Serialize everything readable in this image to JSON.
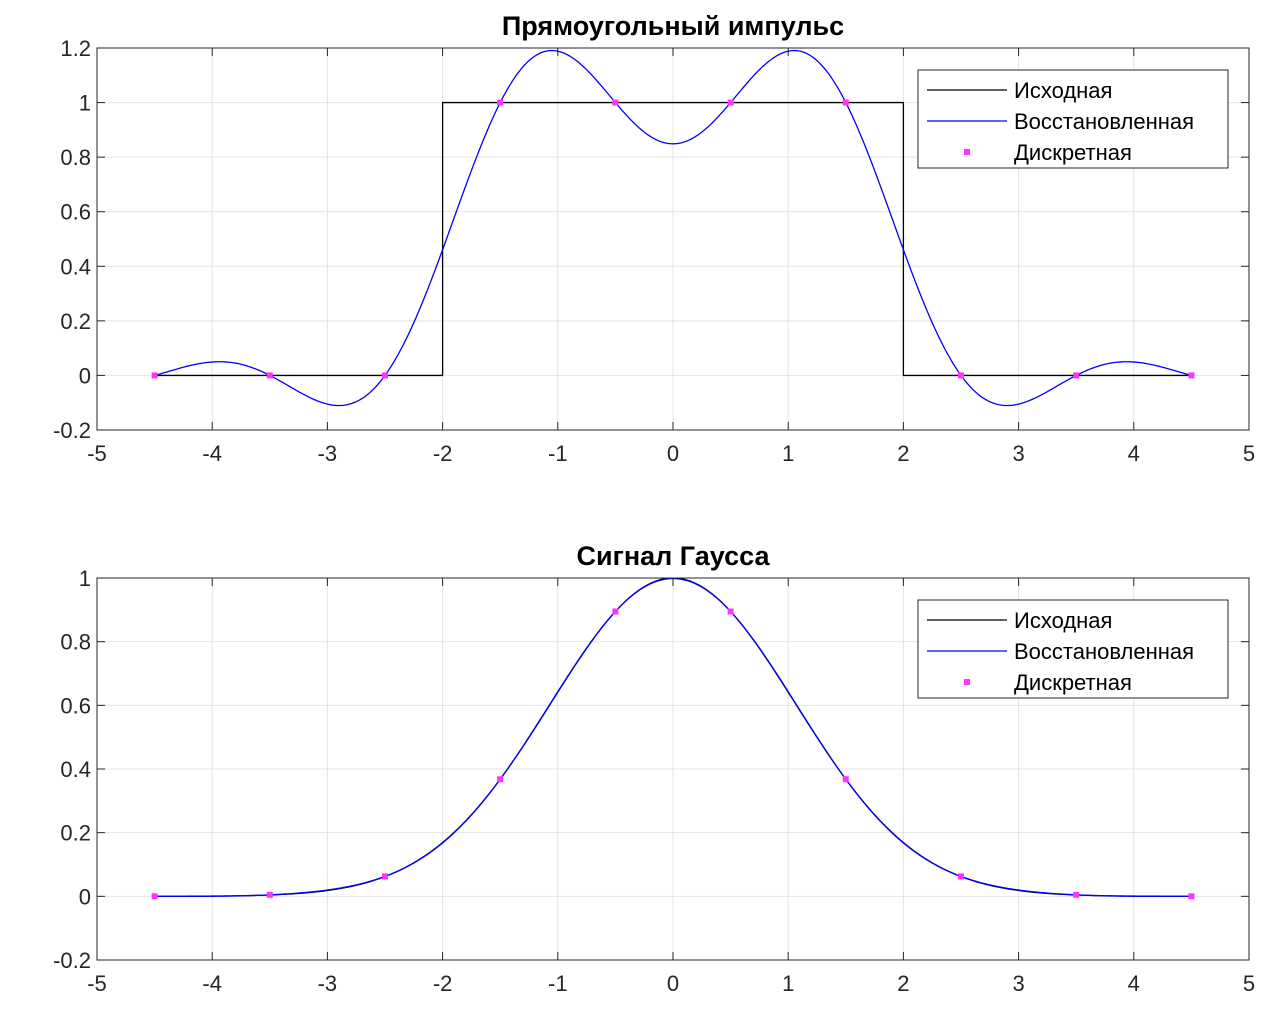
{
  "chart_data": [
    {
      "type": "line",
      "title": "Прямоугольный импульс",
      "xlim": [
        -5,
        5
      ],
      "ylim": [
        -0.2,
        1.2
      ],
      "xticks": [
        -5,
        -4,
        -3,
        -2,
        -1,
        0,
        1,
        2,
        3,
        4,
        5
      ],
      "yticks": [
        -0.2,
        0,
        0.2,
        0.4,
        0.6,
        0.8,
        1,
        1.2
      ],
      "xtick_labels": [
        "-5",
        "-4",
        "-3",
        "-2",
        "-1",
        "0",
        "1",
        "2",
        "3",
        "4",
        "5"
      ],
      "ytick_labels": [
        "-0.2",
        "0",
        "0.2",
        "0.4",
        "0.6",
        "0.8",
        "1",
        "1.2"
      ],
      "grid": true,
      "legend_position": "top-right",
      "series": [
        {
          "name": "Исходная",
          "style": "line",
          "color": "#000000",
          "x": [
            -4.5,
            -2,
            -2,
            2,
            2,
            4.5
          ],
          "y": [
            0,
            0,
            1,
            1,
            0,
            0
          ]
        },
        {
          "name": "Восстановленная",
          "style": "line",
          "color": "#0000ff",
          "generator": "sinc_interpolation"
        },
        {
          "name": "Дискретная",
          "style": "markers",
          "color": "#ff33ff",
          "x": [
            -4.5,
            -3.5,
            -2.5,
            -1.5,
            -0.5,
            0.5,
            1.5,
            2.5,
            3.5,
            4.5
          ],
          "y": [
            0,
            0,
            0,
            1,
            1,
            1,
            1,
            0,
            0,
            0
          ]
        }
      ]
    },
    {
      "type": "line",
      "title": "Сигнал Гаусса",
      "xlim": [
        -5,
        5
      ],
      "ylim": [
        -0.2,
        1
      ],
      "xticks": [
        -5,
        -4,
        -3,
        -2,
        -1,
        0,
        1,
        2,
        3,
        4,
        5
      ],
      "yticks": [
        -0.2,
        0,
        0.2,
        0.4,
        0.6,
        0.8,
        1
      ],
      "xtick_labels": [
        "-5",
        "-4",
        "-3",
        "-2",
        "-1",
        "0",
        "1",
        "2",
        "3",
        "4",
        "5"
      ],
      "ytick_labels": [
        "-0.2",
        "0",
        "0.2",
        "0.4",
        "0.6",
        "0.8",
        "1"
      ],
      "grid": true,
      "legend_position": "top-right",
      "series": [
        {
          "name": "Исходная",
          "style": "line",
          "color": "#000000",
          "generator": "gaussian"
        },
        {
          "name": "Восстановленная",
          "style": "line",
          "color": "#0000ff",
          "generator": "sinc_interpolation"
        },
        {
          "name": "Дискретная",
          "style": "markers",
          "color": "#ff33ff",
          "x": [
            -4.5,
            -3.5,
            -2.5,
            -1.5,
            -0.5,
            0.5,
            1.5,
            2.5,
            3.5,
            4.5
          ],
          "y": [
            3e-05,
            0.0047,
            0.0625,
            0.3679,
            0.8948,
            0.8948,
            0.3679,
            0.0625,
            0.0047,
            3e-05
          ]
        }
      ]
    }
  ]
}
